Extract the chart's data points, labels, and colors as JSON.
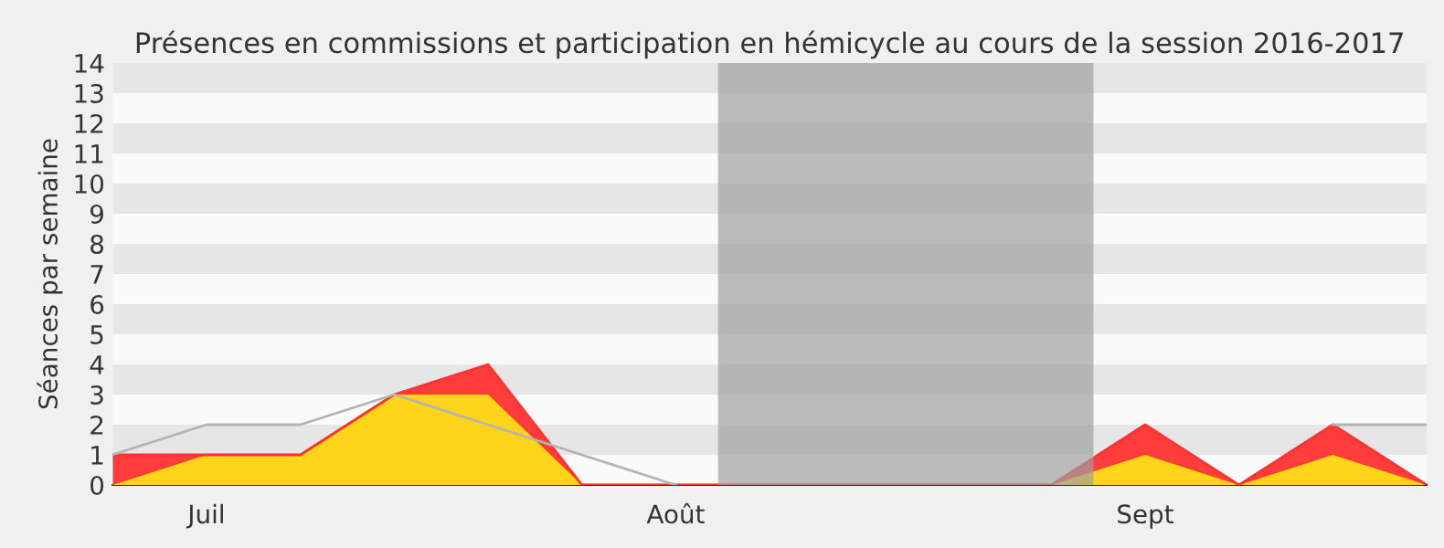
{
  "chart_data": {
    "type": "area",
    "title": "Présences en commissions et participation en hémicycle au cours de la session 2016-2017",
    "ylabel": "Séances par semaine",
    "categories": [
      null,
      "Juil",
      null,
      null,
      null,
      null,
      "Août",
      null,
      null,
      null,
      null,
      "Sept",
      null,
      null,
      null
    ],
    "stacked": true,
    "series": [
      {
        "type": "line",
        "color": "#b4b4b4",
        "values": [
          1,
          2,
          2,
          3,
          2,
          1,
          0,
          null,
          null,
          null,
          null,
          null,
          null,
          2,
          2
        ]
      },
      {
        "color": "#ffd30f",
        "values": [
          0,
          1,
          1,
          3,
          3,
          0,
          0,
          0,
          0,
          0,
          0,
          1,
          0,
          1,
          0
        ]
      },
      {
        "color": "#ff3333",
        "values": [
          1,
          0,
          0,
          0,
          1,
          0,
          0,
          0,
          0,
          0,
          0,
          1,
          0,
          1,
          0
        ]
      }
    ],
    "ylim": [
      0,
      14
    ],
    "yticks": [
      0,
      1,
      2,
      3,
      4,
      5,
      6,
      7,
      8,
      9,
      10,
      11,
      12,
      13,
      14
    ]
  }
}
